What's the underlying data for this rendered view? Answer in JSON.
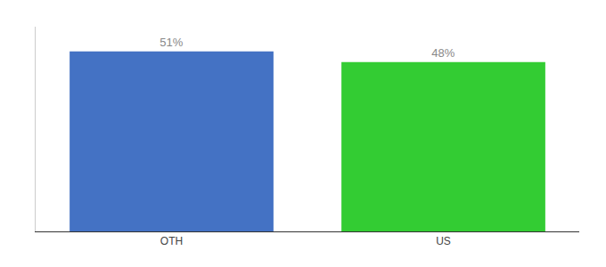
{
  "chart_data": {
    "type": "bar",
    "categories": [
      "OTH",
      "US"
    ],
    "values": [
      51,
      48
    ],
    "colors": [
      "#4472c4",
      "#33cc33"
    ],
    "value_labels": [
      "51%",
      "48%"
    ],
    "data_labels": true,
    "ylim": [
      0,
      58
    ],
    "yticks": [],
    "grid": false,
    "tick_labels": "x"
  }
}
